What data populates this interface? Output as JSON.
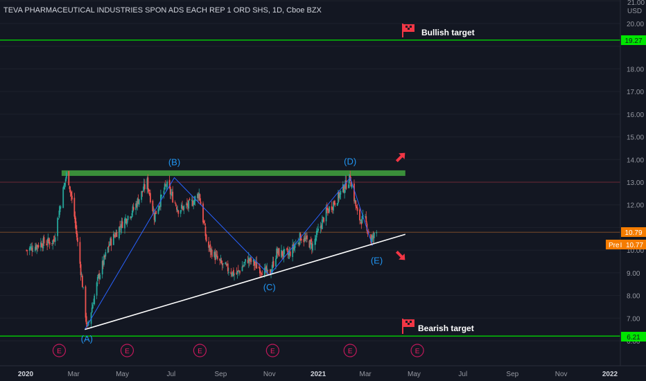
{
  "header": {
    "symbol_name": "TEVA PHARMACEUTICAL INDUSTRIES SPON ADS EACH REP 1 ORD SHS",
    "interval": "1D",
    "exchange": "Cboe BZX"
  },
  "price_axis": {
    "currency": "USD",
    "top_label": "21.00",
    "ticks": [
      "20.00",
      "18.00",
      "17.00",
      "16.00",
      "15.00",
      "14.00",
      "13.00",
      "12.00",
      "10.00",
      "9.00",
      "8.00",
      "7.00",
      "6.00"
    ]
  },
  "time_axis": {
    "ticks": [
      "2020",
      "Mar",
      "May",
      "Jul",
      "Sep",
      "Nov",
      "2021",
      "Mar",
      "May",
      "Jul",
      "Sep",
      "Nov",
      "2022"
    ]
  },
  "price_tags": {
    "bullish": "19.27",
    "last": "10.79",
    "pre": "Pre",
    "pre_value": "10.77",
    "bearish": "6.21"
  },
  "annotations": {
    "bullish_target": "Bullish target",
    "bearish_target": "Bearish target",
    "wave_labels": [
      "(A)",
      "(B)",
      "(C)",
      "(D)",
      "(E)"
    ],
    "earnings_marker": "E"
  },
  "colors": {
    "background": "#131722",
    "up_candle": "#26a69a",
    "down_candle": "#ef5350",
    "target_line": "#00e600",
    "resistance_band": "#3a8f3a",
    "wave_line": "#2962ff",
    "wave_label": "#2196f3",
    "support_line": "#ffffff",
    "arrow": "#f23645",
    "price_tag": "#f57c00"
  },
  "chart_data": {
    "type": "candlestick",
    "title": "TEVA PHARMACEUTICAL INDUSTRIES SPON ADS EACH REP 1 ORD SHS, 1D, Cboe BZX",
    "y_range": [
      5.8,
      21.0
    ],
    "x_range": [
      "2020-01-01",
      "2022-01-01"
    ],
    "horizontal_lines": [
      {
        "name": "Bullish target",
        "value": 19.27
      },
      {
        "name": "Bearish target",
        "value": 6.21
      },
      {
        "name": "resistance",
        "value": 13.4
      },
      {
        "name": "level",
        "value": 13.0
      },
      {
        "name": "last price",
        "value": 10.79
      }
    ],
    "waves": [
      {
        "label": "(A)",
        "date": "2020-03-15",
        "value": 6.5
      },
      {
        "label": "(B)",
        "date": "2020-07-05",
        "value": 13.2
      },
      {
        "label": "(C)",
        "date": "2020-11-01",
        "value": 8.9
      },
      {
        "label": "(D)",
        "date": "2021-02-10",
        "value": 13.2
      },
      {
        "label": "(E)",
        "date": "2021-03-10",
        "value": 10.2
      }
    ],
    "support_line": [
      {
        "date": "2020-03-15",
        "value": 6.5
      },
      {
        "date": "2021-04-20",
        "value": 10.7
      }
    ],
    "earnings_dates": [
      "2020-02-12",
      "2020-05-07",
      "2020-08-06",
      "2020-11-05",
      "2021-02-10",
      "2021-05-05"
    ],
    "price_path": [
      {
        "date": "2020-01-02",
        "value": 10.0
      },
      {
        "date": "2020-01-20",
        "value": 10.3
      },
      {
        "date": "2020-02-05",
        "value": 10.4
      },
      {
        "date": "2020-02-15",
        "value": 12.3
      },
      {
        "date": "2020-02-22",
        "value": 13.5
      },
      {
        "date": "2020-03-02",
        "value": 11.5
      },
      {
        "date": "2020-03-12",
        "value": 8.5
      },
      {
        "date": "2020-03-18",
        "value": 6.5
      },
      {
        "date": "2020-04-01",
        "value": 8.8
      },
      {
        "date": "2020-04-15",
        "value": 10.3
      },
      {
        "date": "2020-05-01",
        "value": 11.2
      },
      {
        "date": "2020-05-15",
        "value": 11.8
      },
      {
        "date": "2020-06-01",
        "value": 13.0
      },
      {
        "date": "2020-06-10",
        "value": 11.5
      },
      {
        "date": "2020-06-25",
        "value": 12.9
      },
      {
        "date": "2020-07-10",
        "value": 11.8
      },
      {
        "date": "2020-07-25",
        "value": 12.0
      },
      {
        "date": "2020-08-05",
        "value": 12.5
      },
      {
        "date": "2020-08-15",
        "value": 10.2
      },
      {
        "date": "2020-09-01",
        "value": 9.4
      },
      {
        "date": "2020-09-20",
        "value": 8.9
      },
      {
        "date": "2020-10-05",
        "value": 9.6
      },
      {
        "date": "2020-10-20",
        "value": 9.2
      },
      {
        "date": "2020-11-01",
        "value": 8.9
      },
      {
        "date": "2020-11-10",
        "value": 9.9
      },
      {
        "date": "2020-11-25",
        "value": 9.8
      },
      {
        "date": "2020-12-10",
        "value": 10.6
      },
      {
        "date": "2020-12-25",
        "value": 10.2
      },
      {
        "date": "2021-01-10",
        "value": 11.6
      },
      {
        "date": "2021-01-25",
        "value": 12.3
      },
      {
        "date": "2021-02-10",
        "value": 13.2
      },
      {
        "date": "2021-02-20",
        "value": 11.4
      },
      {
        "date": "2021-03-01",
        "value": 11.3
      },
      {
        "date": "2021-03-08",
        "value": 10.4
      },
      {
        "date": "2021-03-15",
        "value": 10.8
      }
    ]
  }
}
